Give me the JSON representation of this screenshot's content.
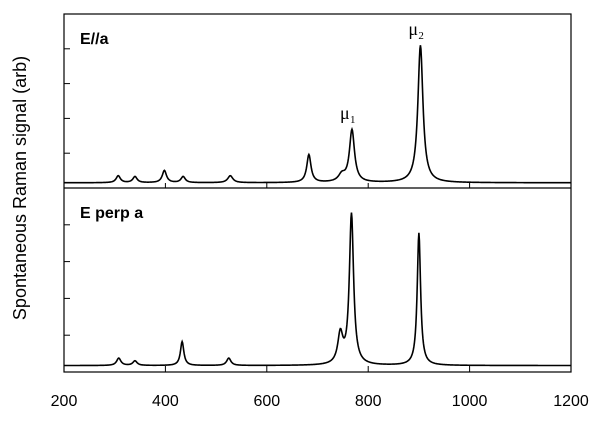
{
  "chart_data": {
    "type": "line",
    "ylabel": "Spontaneous Raman signal (arb)",
    "xlim": [
      200,
      1200
    ],
    "x_ticks": [
      "200",
      "400",
      "600",
      "800",
      "1000",
      "1200"
    ],
    "grid": false,
    "panels": [
      {
        "label": "E//a",
        "ylim": [
          0,
          1
        ],
        "baseline": 0.03,
        "peaks": [
          {
            "x": 307,
            "height": 0.04,
            "width": 5
          },
          {
            "x": 340,
            "height": 0.035,
            "width": 5
          },
          {
            "x": 398,
            "height": 0.07,
            "width": 5
          },
          {
            "x": 435,
            "height": 0.035,
            "width": 5
          },
          {
            "x": 528,
            "height": 0.04,
            "width": 6
          },
          {
            "x": 683,
            "height": 0.16,
            "width": 5
          },
          {
            "x": 748,
            "height": 0.04,
            "width": 8
          },
          {
            "x": 768,
            "height": 0.3,
            "width": 6
          },
          {
            "x": 903,
            "height": 0.79,
            "width": 6
          }
        ],
        "annotations": [
          {
            "text": "μ",
            "subscript": "1",
            "x": 768
          },
          {
            "text": "μ",
            "subscript": "2",
            "x": 903
          }
        ]
      },
      {
        "label": "E perp a",
        "ylim": [
          0,
          1
        ],
        "baseline": 0.035,
        "peaks": [
          {
            "x": 308,
            "height": 0.04,
            "width": 5
          },
          {
            "x": 340,
            "height": 0.025,
            "width": 5
          },
          {
            "x": 433,
            "height": 0.13,
            "width": 4
          },
          {
            "x": 525,
            "height": 0.04,
            "width": 5
          },
          {
            "x": 745,
            "height": 0.16,
            "width": 6
          },
          {
            "x": 767,
            "height": 0.82,
            "width": 5
          },
          {
            "x": 900,
            "height": 0.72,
            "width": 4
          }
        ],
        "annotations": []
      }
    ]
  }
}
